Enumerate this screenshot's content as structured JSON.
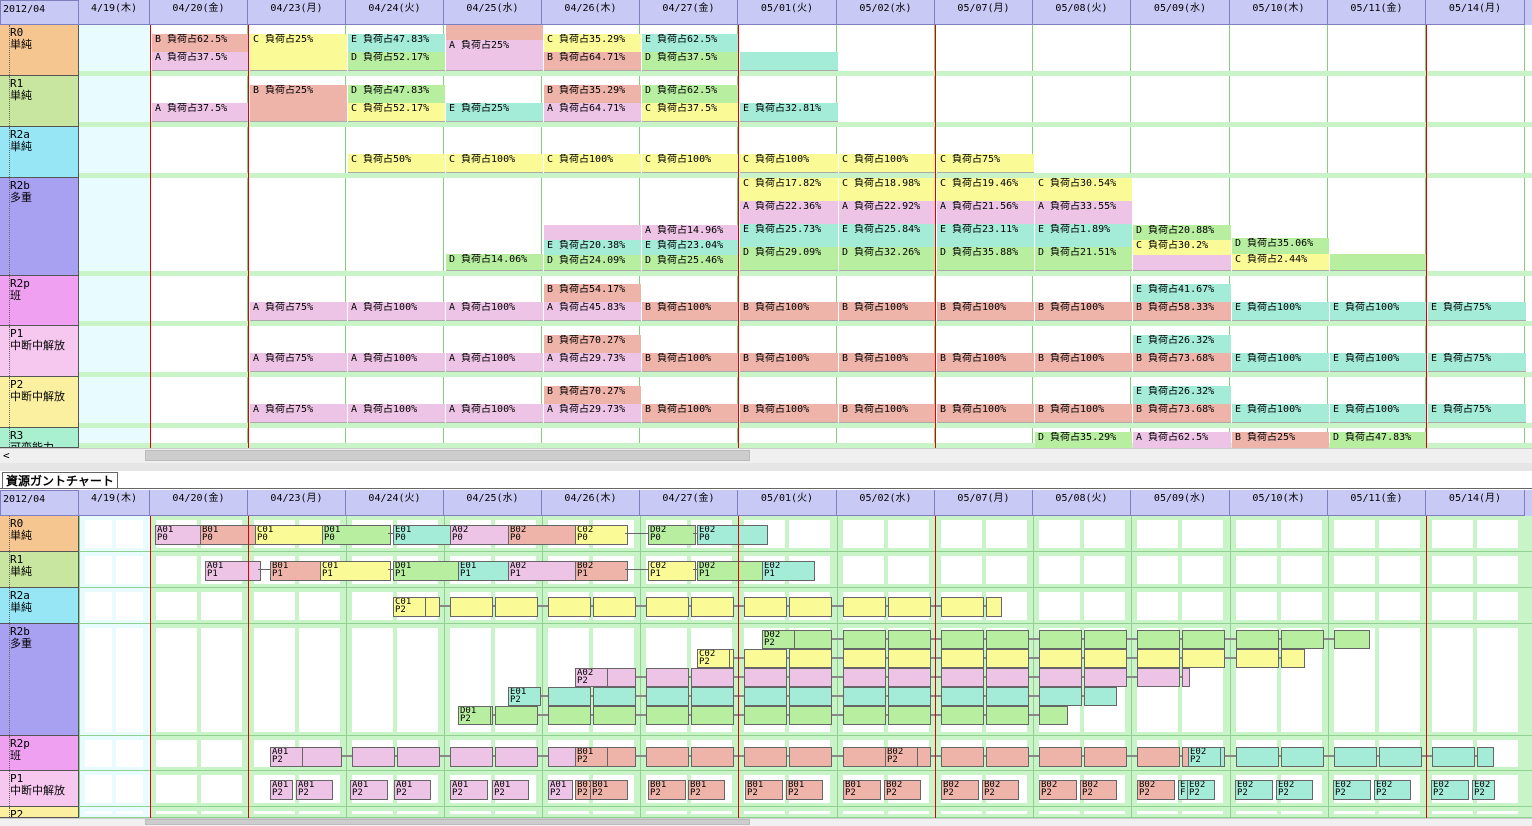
{
  "month": "2012/04",
  "dates": [
    "4/19(木)",
    "04/20(金)",
    "04/23(月)",
    "04/24(火)",
    "04/25(水)",
    "04/26(木)",
    "04/27(金)",
    "05/01(火)",
    "05/02(水)",
    "05/07(月)",
    "05/08(火)",
    "05/09(水)",
    "05/10(木)",
    "05/11(金)",
    "05/14(月)"
  ],
  "colors": {
    "A": "#eec4e6",
    "B": "#eeb4aa",
    "C": "#fafa96",
    "D": "#b8eea0",
    "E": "#a4ecd8"
  },
  "resources": [
    {
      "id": "R0",
      "sub": "単純",
      "color": "#f6c690"
    },
    {
      "id": "R1",
      "sub": "単純",
      "color": "#c8e6a0"
    },
    {
      "id": "R2a",
      "sub": "単純",
      "color": "#96e6f6"
    },
    {
      "id": "R2b",
      "sub": "多重",
      "color": "#a8a0f0"
    },
    {
      "id": "R2p",
      "sub": "班",
      "color": "#f0a0f0"
    },
    {
      "id": "P1",
      "sub": "中断中解放",
      "color": "#f6c8f0"
    },
    {
      "id": "P2",
      "sub": "中断中解放",
      "color": "#faf0a0"
    },
    {
      "id": "R3",
      "sub": "可変能力",
      "color": "#a8f0d0"
    }
  ],
  "load_rows": [
    [
      [
        1,
        [
          [
            "B",
            "B 負荷占62.5%"
          ],
          [
            "A",
            "A 負荷占37.5%"
          ]
        ]
      ],
      [
        2,
        [
          [
            "C",
            "C 負荷占25%"
          ],
          [
            "C",
            ""
          ]
        ]
      ],
      [
        3,
        [
          [
            "E",
            "E 負荷占47.83%"
          ],
          [
            "D",
            "D 負荷占52.17%"
          ]
        ]
      ],
      [
        4,
        [
          [
            "B",
            ""
          ],
          [
            "A",
            "A 負荷占25%"
          ],
          [
            "A",
            ""
          ]
        ]
      ],
      [
        5,
        [
          [
            "C",
            "C 負荷占35.29%"
          ],
          [
            "B",
            "B 負荷占64.71%"
          ]
        ]
      ],
      [
        6,
        [
          [
            "E",
            "E 負荷占62.5%"
          ],
          [
            "D",
            "D 負荷占37.5%"
          ]
        ]
      ],
      [
        7,
        [
          [
            "E",
            ""
          ]
        ]
      ]
    ],
    [
      [
        1,
        [
          [
            "A",
            "A 負荷占37.5%"
          ]
        ]
      ],
      [
        2,
        [
          [
            "B",
            "B 負荷占25%"
          ],
          [
            "B",
            ""
          ]
        ]
      ],
      [
        3,
        [
          [
            "D",
            "D 負荷占47.83%"
          ],
          [
            "C",
            "C 負荷占52.17%"
          ]
        ]
      ],
      [
        4,
        [
          [
            "E",
            "E 負荷占25%"
          ]
        ]
      ],
      [
        5,
        [
          [
            "B",
            "B 負荷占35.29%"
          ],
          [
            "A",
            "A 負荷占64.71%"
          ]
        ]
      ],
      [
        6,
        [
          [
            "D",
            "D 負荷占62.5%"
          ],
          [
            "C",
            "C 負荷占37.5%"
          ]
        ]
      ],
      [
        7,
        [
          [
            "E",
            "E 負荷占32.81%"
          ]
        ]
      ]
    ],
    [
      [
        3,
        [
          [
            "C",
            "C 負荷占50%"
          ]
        ]
      ],
      [
        4,
        [
          [
            "C",
            "C 負荷占100%"
          ]
        ]
      ],
      [
        5,
        [
          [
            "C",
            "C 負荷占100%"
          ]
        ]
      ],
      [
        6,
        [
          [
            "C",
            "C 負荷占100%"
          ]
        ]
      ],
      [
        7,
        [
          [
            "C",
            "C 負荷占100%"
          ]
        ]
      ],
      [
        8,
        [
          [
            "C",
            "C 負荷占100%"
          ]
        ]
      ],
      [
        9,
        [
          [
            "C",
            "C 負荷占75%"
          ]
        ]
      ]
    ],
    [
      [
        4,
        [
          [
            "D",
            "D 負荷占14.06%"
          ]
        ]
      ],
      [
        5,
        [
          [
            "A",
            ""
          ],
          [
            "E",
            "E 負荷占20.38%"
          ],
          [
            "D",
            "D 負荷占24.09%"
          ]
        ]
      ],
      [
        6,
        [
          [
            "A",
            "A 負荷占14.96%"
          ],
          [
            "E",
            "E 負荷占23.04%"
          ],
          [
            "D",
            "D 負荷占25.46%"
          ]
        ]
      ],
      [
        7,
        [
          [
            "C",
            "C 負荷占17.82%"
          ],
          [
            "A",
            "A 負荷占22.36%"
          ],
          [
            "E",
            "E 負荷占25.73%"
          ],
          [
            "D",
            "D 負荷占29.09%"
          ]
        ]
      ],
      [
        8,
        [
          [
            "C",
            "C 負荷占18.98%"
          ],
          [
            "A",
            "A 負荷占22.92%"
          ],
          [
            "E",
            "E 負荷占25.84%"
          ],
          [
            "D",
            "D 負荷占32.26%"
          ]
        ]
      ],
      [
        9,
        [
          [
            "C",
            "C 負荷占19.46%"
          ],
          [
            "A",
            "A 負荷占21.56%"
          ],
          [
            "E",
            "E 負荷占23.11%"
          ],
          [
            "D",
            "D 負荷占35.88%"
          ]
        ]
      ],
      [
        10,
        [
          [
            "C",
            "C 負荷占30.54%"
          ],
          [
            "A",
            "A 負荷占33.55%"
          ],
          [
            "E",
            "E 負荷占1.89%"
          ],
          [
            "D",
            "D 負荷占21.51%"
          ]
        ]
      ],
      [
        11,
        [
          [
            "D",
            "D 負荷占20.88%"
          ],
          [
            "C",
            "C 負荷占30.2%"
          ],
          [
            "A",
            ""
          ]
        ]
      ],
      [
        12,
        [
          [
            "D",
            "D 負荷占35.06%"
          ],
          [
            "C",
            "C 負荷占2.44%"
          ]
        ]
      ],
      [
        13,
        [
          [
            "D",
            ""
          ]
        ]
      ]
    ],
    [
      [
        2,
        [
          [
            "A",
            "A 負荷占75%"
          ]
        ]
      ],
      [
        3,
        [
          [
            "A",
            "A 負荷占100%"
          ]
        ]
      ],
      [
        4,
        [
          [
            "A",
            "A 負荷占100%"
          ]
        ]
      ],
      [
        5,
        [
          [
            "B",
            "B 負荷占54.17%"
          ],
          [
            "A",
            "A 負荷占45.83%"
          ]
        ]
      ],
      [
        6,
        [
          [
            "B",
            "B 負荷占100%"
          ]
        ]
      ],
      [
        7,
        [
          [
            "B",
            "B 負荷占100%"
          ]
        ]
      ],
      [
        8,
        [
          [
            "B",
            "B 負荷占100%"
          ]
        ]
      ],
      [
        9,
        [
          [
            "B",
            "B 負荷占100%"
          ]
        ]
      ],
      [
        10,
        [
          [
            "B",
            "B 負荷占100%"
          ]
        ]
      ],
      [
        11,
        [
          [
            "E",
            "E 負荷占41.67%"
          ],
          [
            "B",
            "B 負荷占58.33%"
          ]
        ]
      ],
      [
        12,
        [
          [
            "E",
            "E 負荷占100%"
          ]
        ]
      ],
      [
        13,
        [
          [
            "E",
            "E 負荷占100%"
          ]
        ]
      ],
      [
        14,
        [
          [
            "E",
            "E 負荷占75%"
          ]
        ]
      ]
    ],
    [
      [
        2,
        [
          [
            "A",
            "A 負荷占75%"
          ]
        ]
      ],
      [
        3,
        [
          [
            "A",
            "A 負荷占100%"
          ]
        ]
      ],
      [
        4,
        [
          [
            "A",
            "A 負荷占100%"
          ]
        ]
      ],
      [
        5,
        [
          [
            "B",
            "B 負荷占70.27%"
          ],
          [
            "A",
            "A 負荷占29.73%"
          ]
        ]
      ],
      [
        6,
        [
          [
            "B",
            "B 負荷占100%"
          ]
        ]
      ],
      [
        7,
        [
          [
            "B",
            "B 負荷占100%"
          ]
        ]
      ],
      [
        8,
        [
          [
            "B",
            "B 負荷占100%"
          ]
        ]
      ],
      [
        9,
        [
          [
            "B",
            "B 負荷占100%"
          ]
        ]
      ],
      [
        10,
        [
          [
            "B",
            "B 負荷占100%"
          ]
        ]
      ],
      [
        11,
        [
          [
            "E",
            "E 負荷占26.32%"
          ],
          [
            "B",
            "B 負荷占73.68%"
          ]
        ]
      ],
      [
        12,
        [
          [
            "E",
            "E 負荷占100%"
          ]
        ]
      ],
      [
        13,
        [
          [
            "E",
            "E 負荷占100%"
          ]
        ]
      ],
      [
        14,
        [
          [
            "E",
            "E 負荷占75%"
          ]
        ]
      ]
    ],
    [
      [
        2,
        [
          [
            "A",
            "A 負荷占75%"
          ]
        ]
      ],
      [
        3,
        [
          [
            "A",
            "A 負荷占100%"
          ]
        ]
      ],
      [
        4,
        [
          [
            "A",
            "A 負荷占100%"
          ]
        ]
      ],
      [
        5,
        [
          [
            "B",
            "B 負荷占70.27%"
          ],
          [
            "A",
            "A 負荷占29.73%"
          ]
        ]
      ],
      [
        6,
        [
          [
            "B",
            "B 負荷占100%"
          ]
        ]
      ],
      [
        7,
        [
          [
            "B",
            "B 負荷占100%"
          ]
        ]
      ],
      [
        8,
        [
          [
            "B",
            "B 負荷占100%"
          ]
        ]
      ],
      [
        9,
        [
          [
            "B",
            "B 負荷占100%"
          ]
        ]
      ],
      [
        10,
        [
          [
            "B",
            "B 負荷占100%"
          ]
        ]
      ],
      [
        11,
        [
          [
            "E",
            "E 負荷占26.32%"
          ],
          [
            "B",
            "B 負荷占73.68%"
          ]
        ]
      ],
      [
        12,
        [
          [
            "E",
            "E 負荷占100%"
          ]
        ]
      ],
      [
        13,
        [
          [
            "E",
            "E 負荷占100%"
          ]
        ]
      ],
      [
        14,
        [
          [
            "E",
            "E 負荷占75%"
          ]
        ]
      ]
    ],
    [
      [
        10,
        [
          [
            "D",
            "D 負荷占35.29%"
          ]
        ]
      ],
      [
        11,
        [
          [
            "A",
            "A 負荷占62.5%"
          ]
        ]
      ],
      [
        12,
        [
          [
            "B",
            "B 負荷占25%"
          ]
        ]
      ],
      [
        13,
        [
          [
            "D",
            "D 負荷占47.83%"
          ]
        ]
      ]
    ]
  ],
  "gantt_title": "資源ガントチャート",
  "gantt_rows": [
    [
      [
        155,
        200,
        "A",
        "A01\nP0"
      ],
      [
        200,
        255,
        "B",
        "B01\nP0"
      ],
      [
        255,
        322,
        "C",
        "C01\nP0"
      ],
      [
        322,
        388,
        "D",
        "D01\nP0"
      ],
      [
        393,
        450,
        "E",
        "E01\nP0"
      ],
      [
        450,
        508,
        "A",
        "A02\nP0"
      ],
      [
        508,
        575,
        "B",
        "B02\nP0"
      ],
      [
        575,
        625,
        "C",
        "C02\nP0"
      ],
      [
        648,
        693,
        "D",
        "D02\nP0"
      ],
      [
        697,
        765,
        "E",
        "E02\nP0"
      ]
    ],
    [
      [
        205,
        258,
        "A",
        "A01\nP1"
      ],
      [
        270,
        320,
        "B",
        "B01\nP1"
      ],
      [
        320,
        388,
        "C",
        "C01\nP1"
      ],
      [
        393,
        458,
        "D",
        "D01\nP1"
      ],
      [
        458,
        508,
        "E",
        "E01\nP1"
      ],
      [
        508,
        575,
        "A",
        "A02\nP1"
      ],
      [
        575,
        625,
        "B",
        "B02\nP1"
      ],
      [
        648,
        693,
        "C",
        "C02\nP1"
      ],
      [
        697,
        765,
        "D",
        "D02\nP1"
      ],
      [
        762,
        812,
        "E",
        "E02\nP1"
      ]
    ],
    [
      [
        393,
        1000,
        "C",
        "C01\nP2"
      ]
    ],
    [
      [
        762,
        1368,
        "D",
        "D02\nP2"
      ],
      [
        697,
        1303,
        "C",
        "C02\nP2"
      ],
      [
        575,
        1188,
        "A",
        "A02\nP2"
      ],
      [
        508,
        1115,
        "E",
        "E01\nP2"
      ],
      [
        458,
        1066,
        "D",
        "D01\nP2"
      ]
    ],
    [
      [
        270,
        575,
        "A",
        "A01\nP2"
      ],
      [
        575,
        885,
        "B",
        "B01\nP2"
      ],
      [
        885,
        1188,
        "B",
        "B02\nP2"
      ],
      [
        1188,
        1492,
        "E",
        "E02\nP2"
      ]
    ],
    [
      [
        270,
        290,
        "A",
        "A01\nP2"
      ],
      [
        296,
        330,
        "A",
        "A01\nP2"
      ],
      [
        350,
        385,
        "A",
        "A01\nP2"
      ],
      [
        394,
        428,
        "A",
        "A01\nP2"
      ],
      [
        450,
        485,
        "A",
        "A01\nP2"
      ],
      [
        492,
        526,
        "A",
        "A01\nP2"
      ],
      [
        548,
        570,
        "A",
        "A01\nP2"
      ],
      [
        575,
        588,
        "B",
        "B01\nP2"
      ],
      [
        590,
        625,
        "B",
        "B01\nP2"
      ],
      [
        648,
        683,
        "B",
        "B01\nP2"
      ],
      [
        688,
        722,
        "B",
        "B01\nP2"
      ],
      [
        745,
        780,
        "B",
        "B01\nP2"
      ],
      [
        786,
        820,
        "B",
        "B01\nP2"
      ],
      [
        843,
        878,
        "B",
        "B01\nP2"
      ],
      [
        884,
        918,
        "B",
        "B02\nP2"
      ],
      [
        941,
        976,
        "B",
        "B02\nP2"
      ],
      [
        982,
        1016,
        "B",
        "B02\nP2"
      ],
      [
        1039,
        1074,
        "B",
        "B02\nP2"
      ],
      [
        1080,
        1114,
        "B",
        "B02\nP2"
      ],
      [
        1137,
        1172,
        "B",
        "B02\nP2"
      ],
      [
        1178,
        1186,
        "E",
        "E\nF"
      ],
      [
        1187,
        1212,
        "E",
        "E02\nP2"
      ],
      [
        1235,
        1270,
        "E",
        "E02\nP2"
      ],
      [
        1276,
        1310,
        "E",
        "E02\nP2"
      ],
      [
        1333,
        1368,
        "E",
        "E02\nP2"
      ],
      [
        1374,
        1408,
        "E",
        "E02\nP2"
      ],
      [
        1431,
        1466,
        "E",
        "E02\nP2"
      ],
      [
        1472,
        1492,
        "E",
        "E02\nP2"
      ]
    ]
  ]
}
